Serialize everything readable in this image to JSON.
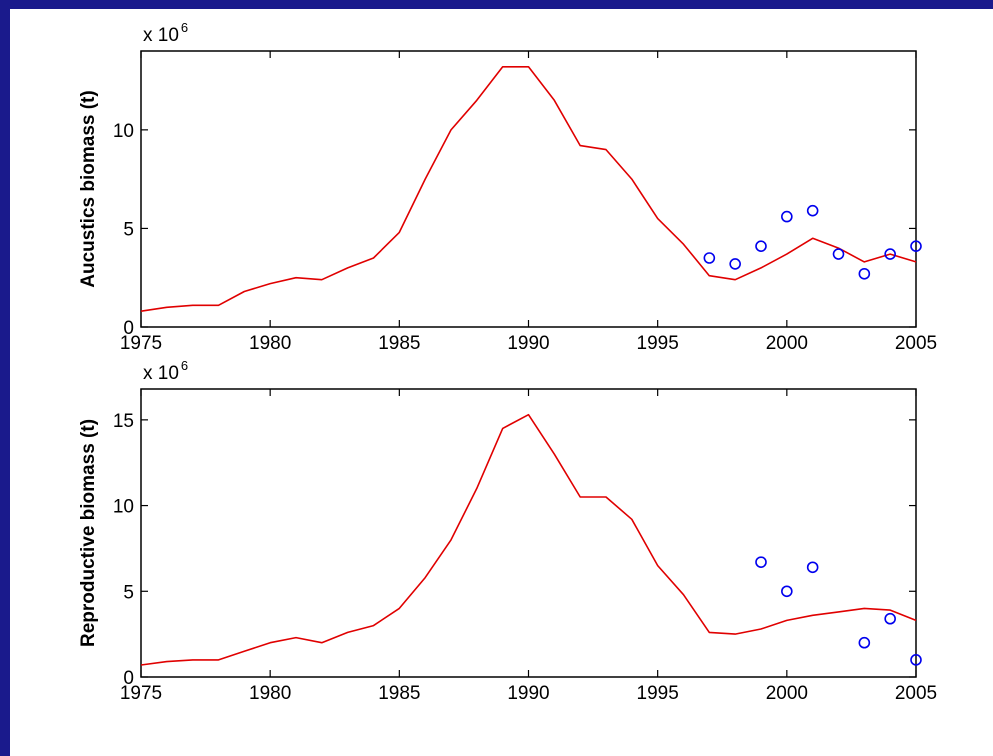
{
  "chart_data": [
    {
      "type": "line",
      "ylabel": "Aucustics biomass (t)",
      "multiplier_base": "x 10",
      "multiplier_exp": "6",
      "xlim": [
        1975,
        2005
      ],
      "ylim": [
        0,
        14
      ],
      "xticks": [
        1975,
        1980,
        1985,
        1990,
        1995,
        2000,
        2005
      ],
      "yticks": [
        0,
        5,
        10
      ],
      "grid": false,
      "series": [
        {
          "style": "line",
          "color": "#e00000",
          "x": [
            1975,
            1976,
            1977,
            1978,
            1979,
            1980,
            1981,
            1982,
            1983,
            1984,
            1985,
            1986,
            1987,
            1988,
            1989,
            1990,
            1991,
            1992,
            1993,
            1994,
            1995,
            1996,
            1997,
            1998,
            1999,
            2000,
            2001,
            2002,
            2003,
            2004,
            2005
          ],
          "y": [
            0.8,
            1.0,
            1.1,
            1.1,
            1.8,
            2.2,
            2.5,
            2.4,
            3.0,
            3.5,
            4.8,
            7.5,
            10.0,
            11.5,
            13.2,
            13.2,
            11.5,
            9.2,
            9.0,
            7.5,
            5.5,
            4.2,
            2.6,
            2.4,
            3.0,
            3.7,
            4.5,
            4.0,
            3.3,
            3.7,
            3.3
          ]
        },
        {
          "style": "markers",
          "marker": "circle",
          "color": "#0000ee",
          "x": [
            1997,
            1998,
            1999,
            2000,
            2001,
            2002,
            2003,
            2004,
            2005
          ],
          "y": [
            3.5,
            3.2,
            4.1,
            5.6,
            5.9,
            3.7,
            2.7,
            3.7,
            4.1
          ]
        }
      ]
    },
    {
      "type": "line",
      "ylabel": "Reproductive biomass (t)",
      "multiplier_base": "x 10",
      "multiplier_exp": "6",
      "xlim": [
        1975,
        2005
      ],
      "ylim": [
        0,
        16.8
      ],
      "xticks": [
        1975,
        1980,
        1985,
        1990,
        1995,
        2000,
        2005
      ],
      "yticks": [
        0,
        5,
        10,
        15
      ],
      "grid": false,
      "series": [
        {
          "style": "line",
          "color": "#e00000",
          "x": [
            1975,
            1976,
            1977,
            1978,
            1979,
            1980,
            1981,
            1982,
            1983,
            1984,
            1985,
            1986,
            1987,
            1988,
            1989,
            1990,
            1991,
            1992,
            1993,
            1994,
            1995,
            1996,
            1997,
            1998,
            1999,
            2000,
            2001,
            2002,
            2003,
            2004,
            2005
          ],
          "y": [
            0.7,
            0.9,
            1.0,
            1.0,
            1.5,
            2.0,
            2.3,
            2.0,
            2.6,
            3.0,
            4.0,
            5.8,
            8.0,
            11.0,
            14.5,
            15.3,
            13.0,
            10.5,
            10.5,
            9.2,
            6.5,
            4.8,
            2.6,
            2.5,
            2.8,
            3.3,
            3.6,
            3.8,
            4.0,
            3.9,
            3.3
          ]
        },
        {
          "style": "markers",
          "marker": "circle",
          "color": "#0000ee",
          "x": [
            1999,
            2000,
            2001,
            2003,
            2004,
            2005
          ],
          "y": [
            6.7,
            5.0,
            6.4,
            2.0,
            3.4,
            1.0
          ]
        }
      ]
    }
  ]
}
